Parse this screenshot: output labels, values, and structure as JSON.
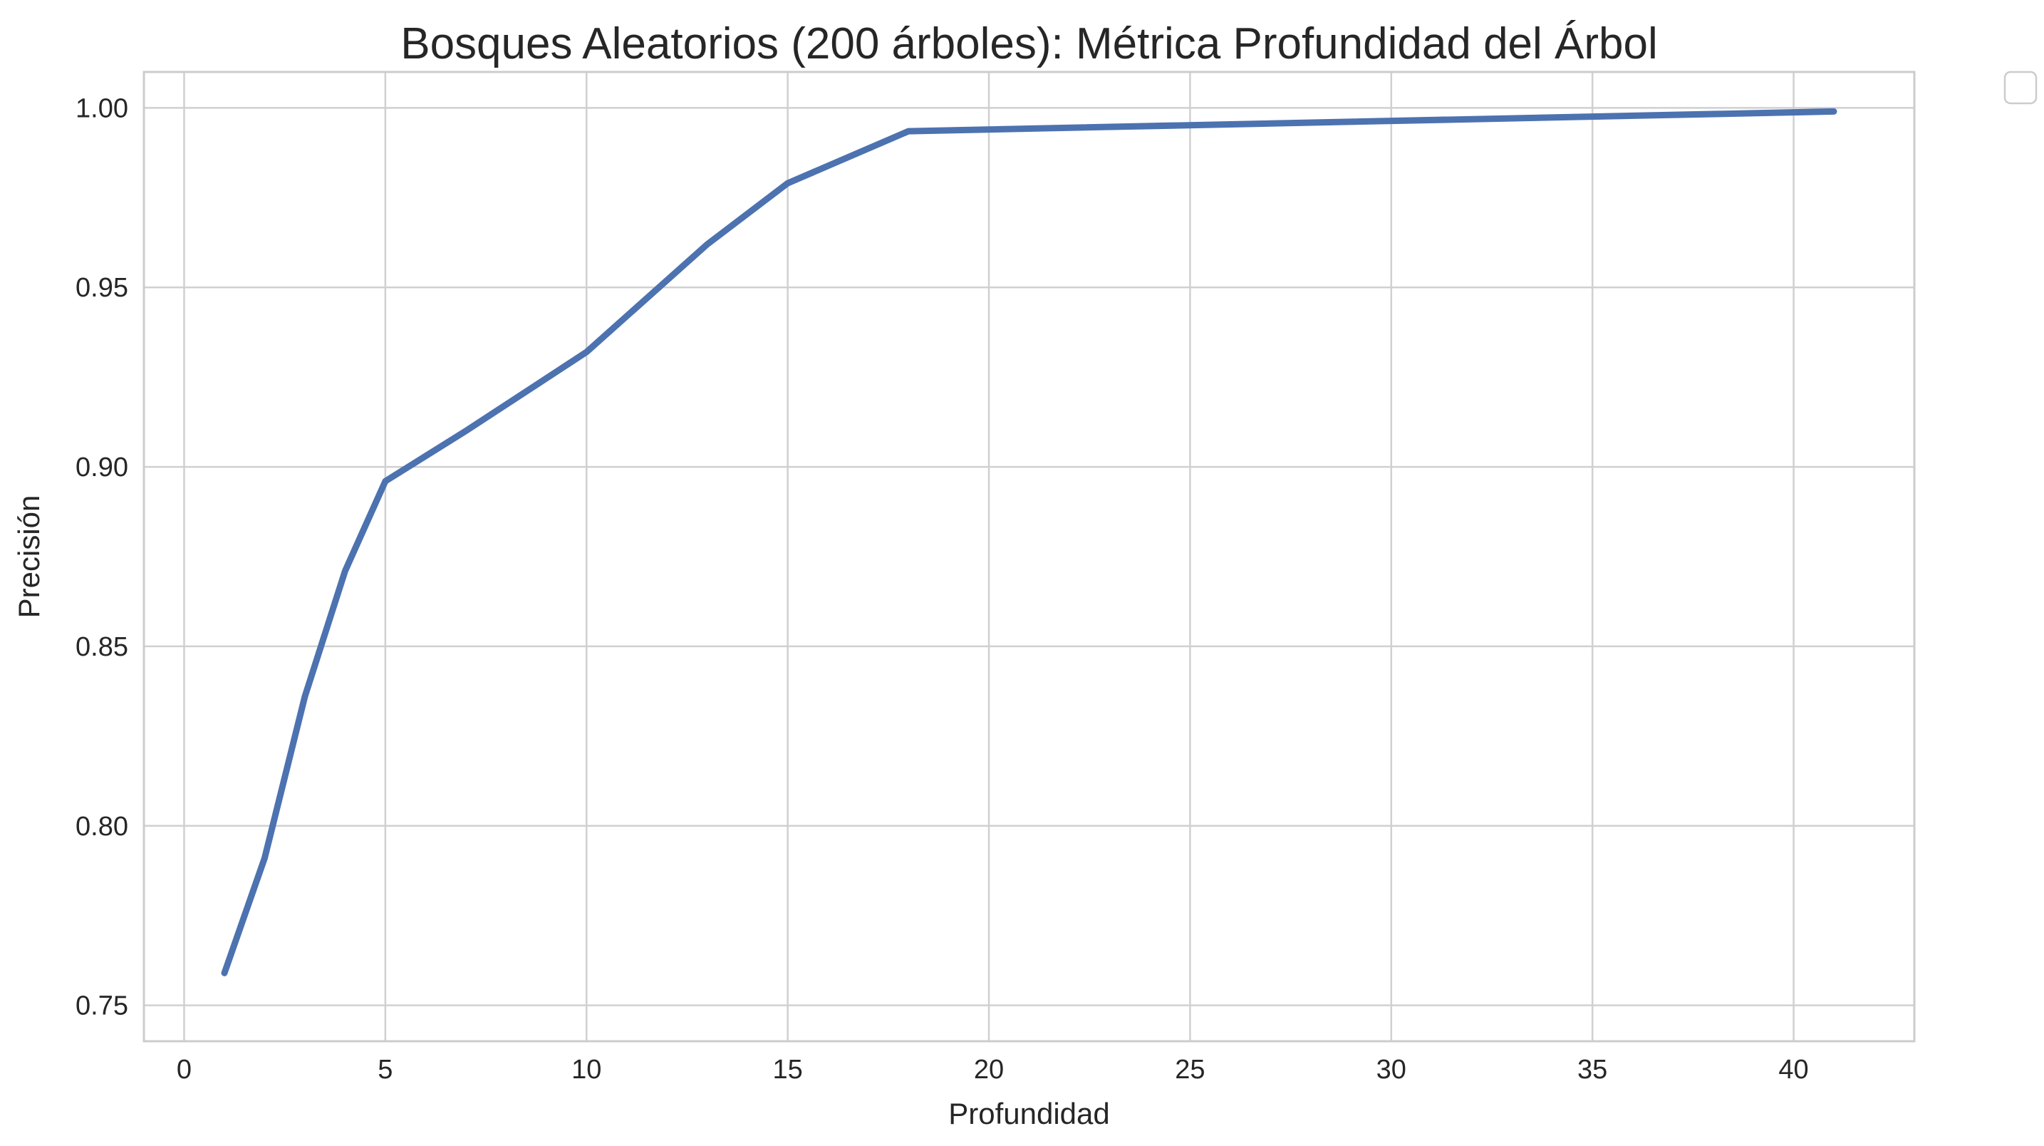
{
  "chart_data": {
    "type": "line",
    "title": "Bosques Aleatorios (200 árboles): Métrica Profundidad del Árbol",
    "xlabel": "Profundidad",
    "ylabel": "Precisión",
    "xlim": [
      -1,
      43
    ],
    "ylim": [
      0.74,
      1.01
    ],
    "xticks": [
      0,
      5,
      10,
      15,
      20,
      25,
      30,
      35,
      40
    ],
    "yticks": [
      0.75,
      0.8,
      0.85,
      0.9,
      0.95,
      1.0
    ],
    "grid": true,
    "legend": {
      "placement": "outside-top-right",
      "entries": []
    },
    "series": [
      {
        "x": [
          1,
          2,
          3,
          4,
          5,
          7,
          10,
          13,
          15,
          18,
          41
        ],
        "values": [
          0.759,
          0.791,
          0.836,
          0.871,
          0.896,
          0.91,
          0.932,
          0.962,
          0.979,
          0.9935,
          0.999
        ]
      }
    ]
  },
  "colors": {
    "line": "#4c72b0",
    "grid": "#d0d0d0",
    "frame": "#cccccc",
    "text": "#262626",
    "background": "#ffffff"
  }
}
